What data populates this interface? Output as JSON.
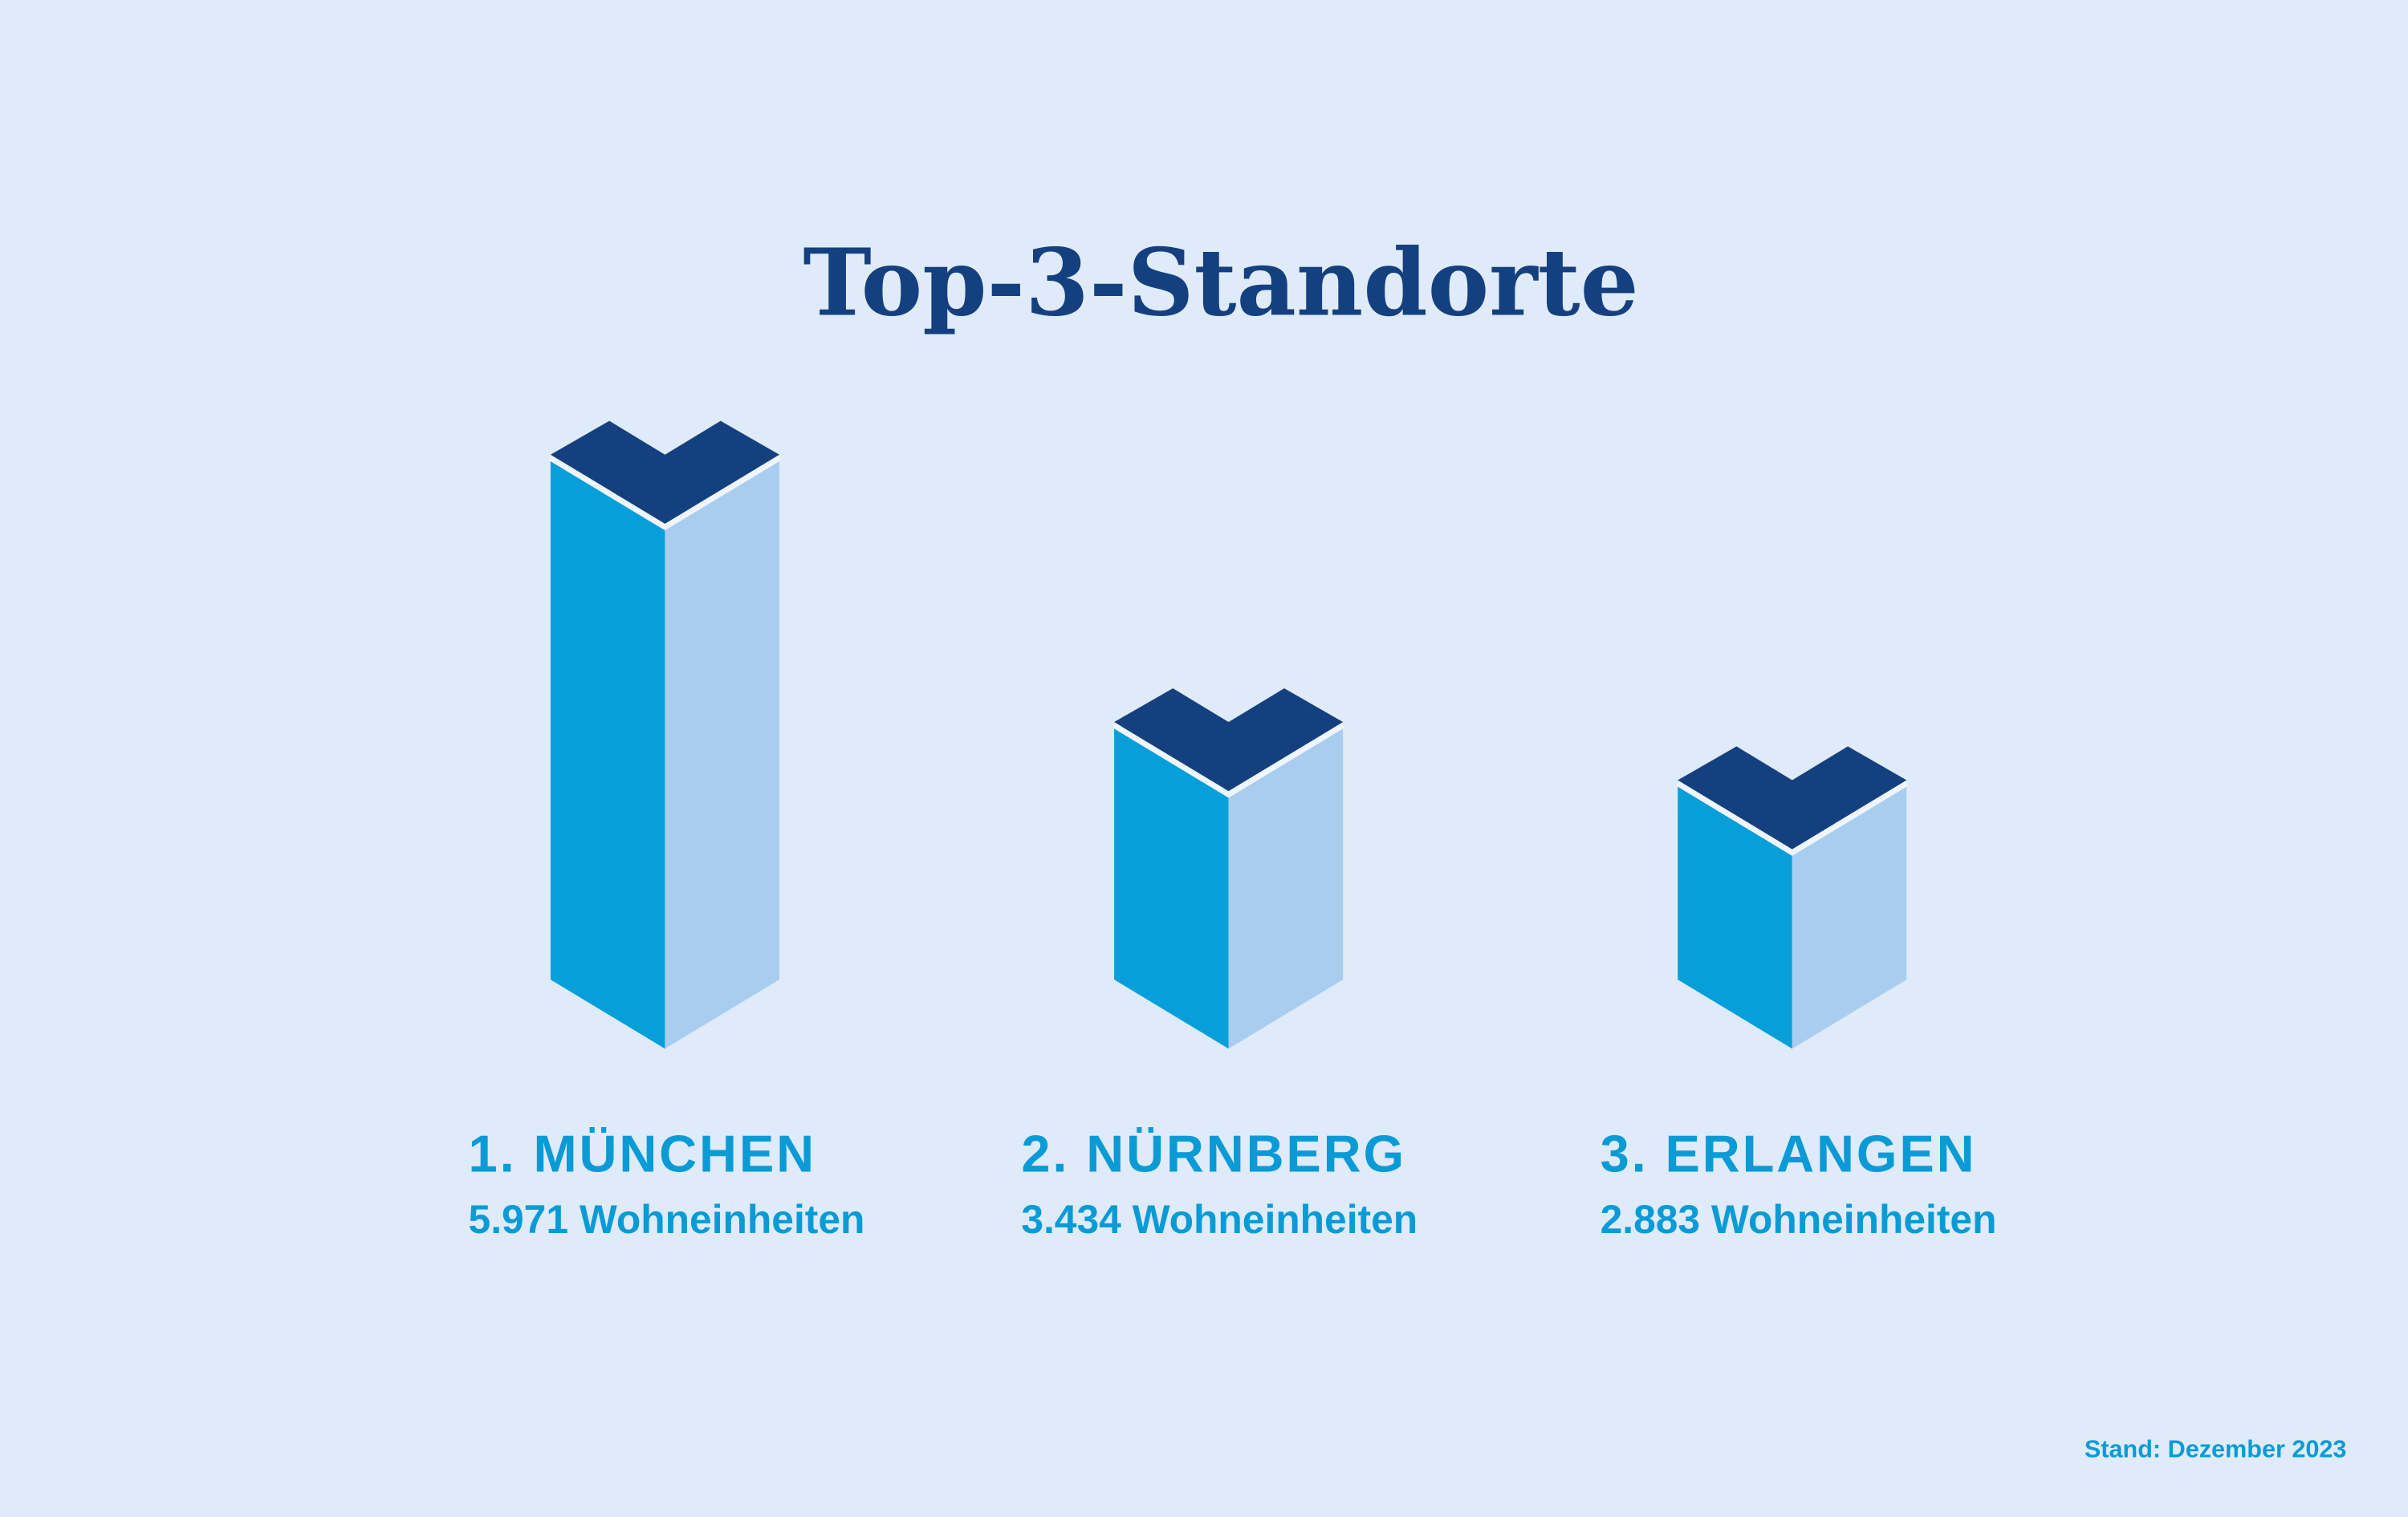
{
  "chart_data": {
    "type": "bar",
    "title": "Top-3-Standorte",
    "categories": [
      "1. MÜNCHEN",
      "2. NÜRNBERG",
      "3. ERLANGEN"
    ],
    "values": [
      5971,
      3434,
      2883
    ],
    "value_labels": [
      "5.971 Wohneinheiten",
      "3.434 Wohneinheiten",
      "2.883 Wohneinheiten"
    ],
    "unit": "Wohneinheiten",
    "footnote": "Stand: Dezember 2023",
    "style": "isometric 3D columns",
    "colors": {
      "background": "#dfebf8",
      "front_left": "#069fd9",
      "front_right": "#a9cdee",
      "top": "#15407f",
      "text": "#0a9bd6",
      "title": "#15407f"
    }
  }
}
